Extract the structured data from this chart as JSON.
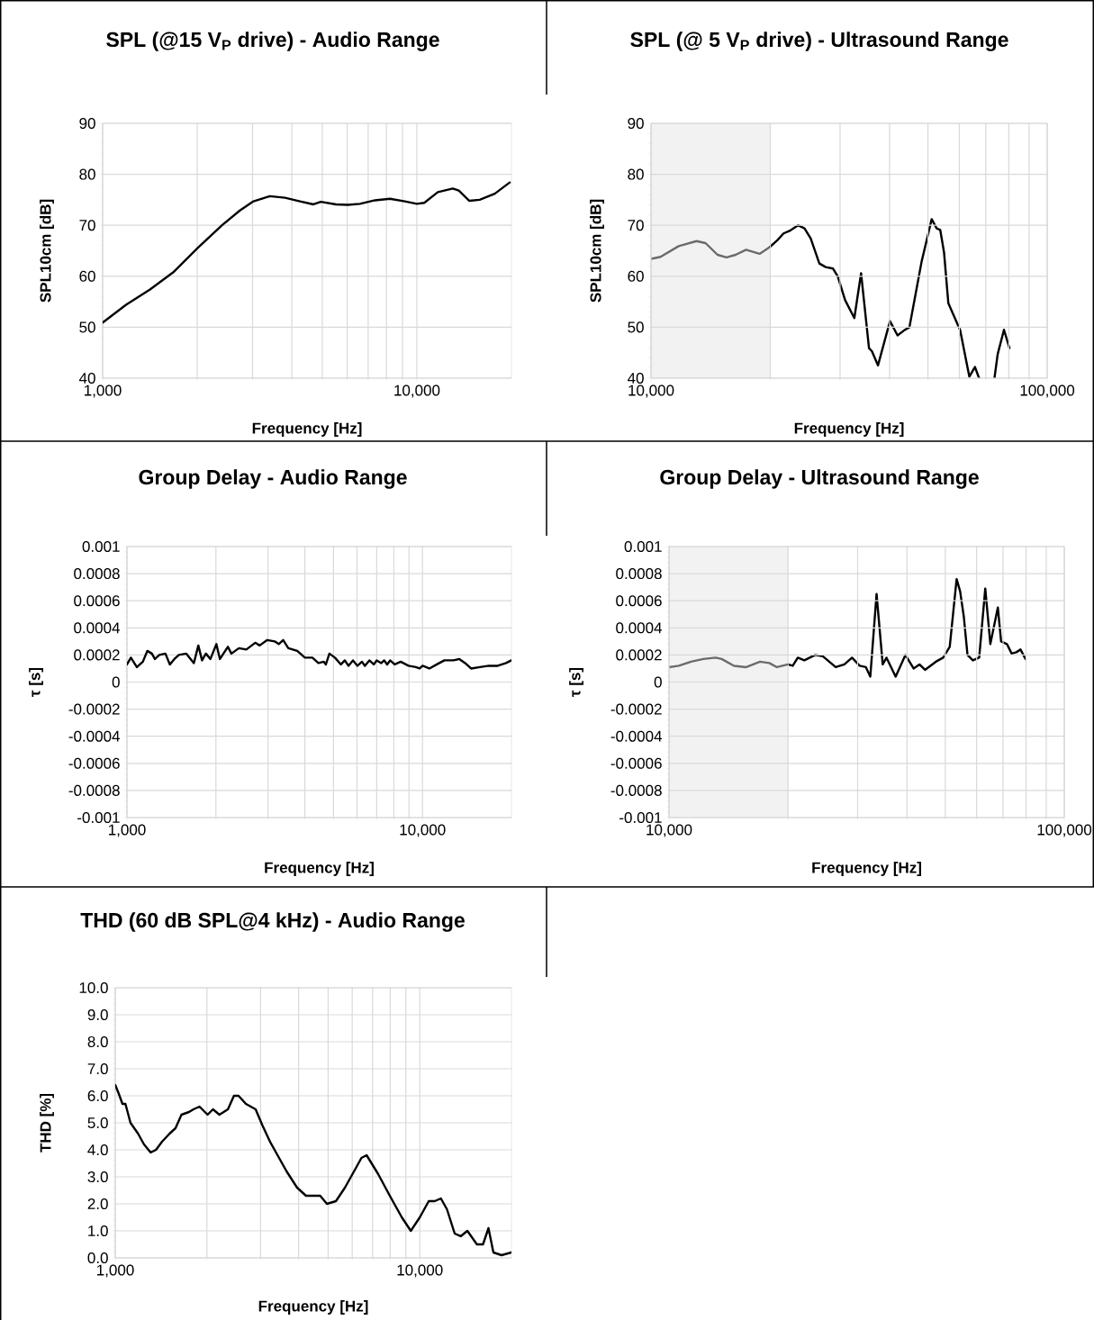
{
  "chart_data": [
    {
      "type": "line",
      "title": "SPL (@15 V$_{P}$ drive) - Audio Range",
      "xlabel": "Frequency [Hz]",
      "ylabel": "SPL10cm [dB]",
      "log": "x",
      "grid": true,
      "xlim": [
        1000,
        20000
      ],
      "xticks": [
        {
          "value": 1000,
          "label": "1,000"
        },
        {
          "value": 10000,
          "label": "10,000"
        }
      ],
      "ylim": [
        40,
        90
      ],
      "yticks": [
        40,
        50,
        60,
        70,
        80,
        90
      ],
      "series": [
        {
          "color": "#000000",
          "x": [
            1000,
            1187,
            1415,
            1687,
            2010,
            2398,
            2734,
            3020,
            3405,
            3805,
            4245,
            4687,
            4948,
            5527,
            6033,
            6587,
            7360,
            8208,
            9153,
            10000,
            10560,
            11660,
            13010,
            13600,
            14690,
            15840,
            17700,
            19750
          ],
          "values": [
            50.9,
            54.4,
            57.4,
            60.9,
            65.6,
            70.0,
            72.9,
            74.7,
            75.7,
            75.4,
            74.7,
            74.1,
            74.6,
            74.1,
            74.0,
            74.2,
            74.9,
            75.2,
            74.7,
            74.2,
            74.4,
            76.5,
            77.2,
            76.8,
            74.8,
            75.0,
            76.2,
            78.4
          ]
        }
      ]
    },
    {
      "type": "line",
      "title": "SPL (@ 5 V$_{P}$ drive) - Ultrasound Range",
      "xlabel": "Frequency [Hz]",
      "ylabel": "SPL10cm [dB]",
      "log": "x",
      "grid": true,
      "xlim": [
        10000,
        100000
      ],
      "xticks": [
        {
          "value": 10000,
          "label": "10,000"
        },
        {
          "value": 100000,
          "label": "100,000"
        }
      ],
      "ylim": [
        40,
        90
      ],
      "yticks": [
        40,
        50,
        60,
        70,
        80,
        90
      ],
      "bands": [
        {
          "axis": "x",
          "from": 10000,
          "to": 20000,
          "color": "#f2f2f2"
        }
      ],
      "series": [
        {
          "color": "#6b6b6b",
          "x": [
            10000,
            10570,
            11740,
            13030,
            13730,
            14720,
            15510,
            16350,
            17380,
            18790,
            20000
          ],
          "values": [
            63.4,
            63.8,
            65.9,
            66.9,
            66.5,
            64.2,
            63.7,
            64.2,
            65.2,
            64.4,
            65.8
          ]
        },
        {
          "color": "#000000",
          "x": [
            20000,
            20860,
            21600,
            22370,
            23500,
            24400,
            25300,
            26600,
            27600,
            28800,
            29600,
            30900,
            32600,
            33900,
            35500,
            36100,
            37400,
            40100,
            41900,
            43400,
            44900,
            48200,
            51100,
            52600,
            53700,
            54900,
            56300,
            60300,
            63600,
            65700,
            67300,
            70000,
            73600,
            75000,
            77800,
            80300
          ],
          "values": [
            65.8,
            67.1,
            68.4,
            68.9,
            70.0,
            69.4,
            67.4,
            62.5,
            61.8,
            61.5,
            60.0,
            55.3,
            51.8,
            60.6,
            45.9,
            45.3,
            42.5,
            51.2,
            48.4,
            49.3,
            50.0,
            62.9,
            71.2,
            69.4,
            69.1,
            64.7,
            54.7,
            49.4,
            40.3,
            42.2,
            40.0,
            null,
            40.0,
            44.7,
            49.5,
            45.9
          ]
        }
      ]
    },
    {
      "type": "line",
      "title": "Group Delay - Audio Range",
      "xlabel": "Frequency [Hz]",
      "ylabel": "τ [s]",
      "log": "x",
      "grid": true,
      "xlim": [
        1000,
        20000
      ],
      "xticks": [
        {
          "value": 1000,
          "label": "1,000"
        },
        {
          "value": 10000,
          "label": "10,000"
        }
      ],
      "ylim": [
        -0.001,
        0.001
      ],
      "yticks": [
        -0.001,
        -0.0008,
        -0.0006,
        -0.0004,
        -0.0002,
        0,
        0.0002,
        0.0004,
        0.0006,
        0.0008,
        0.001
      ],
      "series": [
        {
          "color": "#000000",
          "x": [
            1000,
            1031,
            1080,
            1132,
            1172,
            1214,
            1243,
            1287,
            1349,
            1397,
            1447,
            1498,
            1588,
            1684,
            1744,
            1795,
            1850,
            1916,
            2007,
            2063,
            2195,
            2256,
            2393,
            2535,
            2717,
            2812,
            2983,
            3161,
            3263,
            3378,
            3516,
            3770,
            4000,
            4240,
            4444,
            4636,
            4710,
            4842,
            5054,
            5296,
            5460,
            5616,
            5819,
            6025,
            6240,
            6384,
            6611,
            6842,
            7002,
            7251,
            7420,
            7592,
            7773,
            8050,
            8442,
            8960,
            9498,
            9774,
            10010,
            10550,
            11180,
            11860,
            12710,
            13330,
            13940,
            14600,
            15640,
            16770,
            17970,
            19170,
            20000
          ],
          "values": [
            0.00013,
            0.00018,
            0.00011,
            0.00015,
            0.00023,
            0.00021,
            0.00017,
            0.0002,
            0.00021,
            0.00013,
            0.00017,
            0.0002,
            0.00021,
            0.00014,
            0.00027,
            0.00016,
            0.00021,
            0.00017,
            0.00028,
            0.00017,
            0.00026,
            0.00021,
            0.00025,
            0.00024,
            0.00029,
            0.00027,
            0.00031,
            0.0003,
            0.00028,
            0.00031,
            0.00025,
            0.00023,
            0.00018,
            0.00018,
            0.00014,
            0.00015,
            0.00013,
            0.00021,
            0.00018,
            0.00013,
            0.00016,
            0.00012,
            0.00016,
            0.00012,
            0.00015,
            0.00012,
            0.00016,
            0.00013,
            0.00016,
            0.00014,
            0.00016,
            0.00013,
            0.00016,
            0.00013,
            0.00015,
            0.00012,
            0.00011,
            0.0001,
            0.00012,
            0.0001,
            0.00013,
            0.00016,
            0.00016,
            0.00017,
            0.00014,
            0.0001,
            0.00011,
            0.00012,
            0.00012,
            0.00014,
            0.00016
          ]
        }
      ]
    },
    {
      "type": "line",
      "title": "Group Delay - Ultrasound Range",
      "xlabel": "Frequency [Hz]",
      "ylabel": "τ [s]",
      "log": "x",
      "grid": true,
      "xlim": [
        10000,
        100000
      ],
      "xticks": [
        {
          "value": 10000,
          "label": "10,000"
        },
        {
          "value": 100000,
          "label": "100,000"
        }
      ],
      "ylim": [
        -0.001,
        0.001
      ],
      "yticks": [
        -0.001,
        -0.0008,
        -0.0006,
        -0.0004,
        -0.0002,
        0,
        0.0002,
        0.0004,
        0.0006,
        0.0008,
        0.001
      ],
      "bands": [
        {
          "axis": "x",
          "from": 10000,
          "to": 20000,
          "color": "#f2f2f2"
        }
      ],
      "series": [
        {
          "color": "#6b6b6b",
          "x": [
            10000,
            10590,
            11370,
            12210,
            13120,
            13590,
            14600,
            15680,
            16990,
            17940,
            18750,
            20000
          ],
          "values": [
            0.00011,
            0.00012,
            0.00015,
            0.00017,
            0.00018,
            0.00017,
            0.00012,
            0.00011,
            0.00015,
            0.00014,
            0.00011,
            0.00013
          ]
        },
        {
          "color": "#000000",
          "x": [
            20000,
            20560,
            21170,
            22000,
            23430,
            24500,
            26400,
            27770,
            29040,
            30350,
            31480,
            32300,
            33500,
            34720,
            35500,
            37440,
            39620,
            41570,
            43010,
            44420,
            47300,
            49380,
            51300,
            53400,
            54500,
            55700,
            56900,
            58700,
            60900,
            63100,
            65000,
            67900,
            69200,
            71600,
            73600,
            75600,
            77500,
            79800
          ],
          "values": [
            0.00013,
            0.00012,
            0.00018,
            0.00016,
            0.0002,
            0.00019,
            0.00011,
            0.00013,
            0.00018,
            0.00012,
            0.00011,
            4e-05,
            0.00065,
            0.00013,
            0.00018,
            4e-05,
            0.0002,
            0.0001,
            0.00013,
            9e-05,
            0.00015,
            0.00018,
            0.00026,
            0.00076,
            0.00067,
            0.00048,
            0.0002,
            0.00016,
            0.00018,
            0.00069,
            0.00028,
            0.00055,
            0.0003,
            0.00028,
            0.00021,
            0.00022,
            0.00024,
            0.00017
          ]
        }
      ]
    },
    {
      "type": "line",
      "title": "THD (60 dB SPL@4 kHz) - Audio Range",
      "xlabel": "Frequency [Hz]",
      "ylabel": "THD [%]",
      "log": "x",
      "grid": true,
      "xlim": [
        1000,
        20000
      ],
      "xticks": [
        {
          "value": 1000,
          "label": "1,000"
        },
        {
          "value": 10000,
          "label": "10,000"
        }
      ],
      "ylim": [
        0,
        10
      ],
      "yticks": [
        {
          "value": 0,
          "label": "0.0"
        },
        {
          "value": 1,
          "label": "1.0"
        },
        {
          "value": 2,
          "label": "2.0"
        },
        {
          "value": 3,
          "label": "3.0"
        },
        {
          "value": 4,
          "label": "4.0"
        },
        {
          "value": 5,
          "label": "5.0"
        },
        {
          "value": 6,
          "label": "6.0"
        },
        {
          "value": 7,
          "label": "7.0"
        },
        {
          "value": 8,
          "label": "8.0"
        },
        {
          "value": 9,
          "label": "9.0"
        },
        {
          "value": 10,
          "label": "10.0"
        }
      ],
      "series": [
        {
          "color": "#000000",
          "x": [
            1000,
            1025,
            1056,
            1080,
            1122,
            1188,
            1243,
            1307,
            1361,
            1424,
            1508,
            1577,
            1650,
            1746,
            1807,
            1891,
            2010,
            2093,
            2198,
            2344,
            2453,
            2540,
            2686,
            2890,
            3044,
            3223,
            3412,
            3654,
            3955,
            4230,
            4525,
            4709,
            4955,
            5304,
            5678,
            6150,
            6433,
            6690,
            7303,
            7973,
            8730,
            9343,
            10000,
            10700,
            11200,
            11730,
            12280,
            13020,
            13630,
            14330,
            15400,
            16130,
            16810,
            17450,
            18560,
            20000
          ],
          "values": [
            6.4,
            6.1,
            5.7,
            5.7,
            5.0,
            4.6,
            4.2,
            3.9,
            4.0,
            4.3,
            4.6,
            4.8,
            5.3,
            5.4,
            5.5,
            5.6,
            5.3,
            5.5,
            5.3,
            5.5,
            6.0,
            6.0,
            5.7,
            5.5,
            4.9,
            4.3,
            3.8,
            3.2,
            2.6,
            2.3,
            2.3,
            2.3,
            2.0,
            2.1,
            2.6,
            3.3,
            3.7,
            3.8,
            3.1,
            2.3,
            1.5,
            1.0,
            1.5,
            2.1,
            2.1,
            2.2,
            1.8,
            0.9,
            0.8,
            1.0,
            0.5,
            0.5,
            1.1,
            0.2,
            0.1,
            0.2
          ]
        }
      ]
    }
  ]
}
